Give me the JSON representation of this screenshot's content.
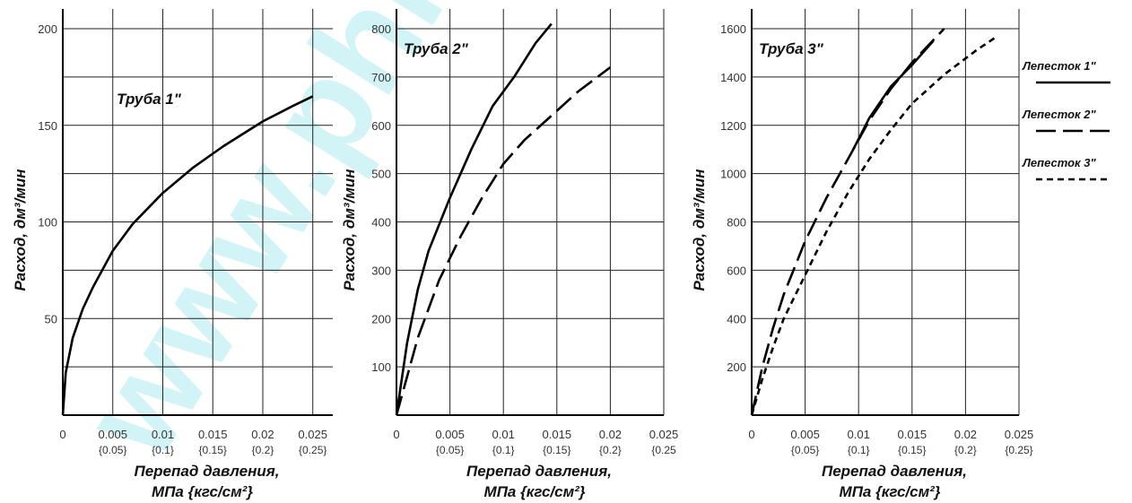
{
  "watermark": "www.phlo",
  "chart_data": [
    {
      "type": "line",
      "title": "Труба 1\"",
      "ylabel": "Расход, дм³/мин",
      "xlabel_line1": "Перепад давления,",
      "xlabel_line2": "МПа {кгс/см²}",
      "xlim": [
        0,
        0.027
      ],
      "ylim": [
        0,
        200
      ],
      "x_ticks": [
        "0",
        "0.005",
        "0.01",
        "0.015",
        "0.02",
        "0.025"
      ],
      "x_ticks_secondary": [
        "{0.05}",
        "{0.1}",
        "{0.15}",
        "{0.2}",
        "{0.25}"
      ],
      "y_ticks": [
        "50",
        "100",
        "150",
        "200"
      ],
      "grid": true,
      "series": [
        {
          "style": "solid",
          "x": [
            0,
            0.0003,
            0.001,
            0.002,
            0.003,
            0.005,
            0.007,
            0.01,
            0.013,
            0.016,
            0.02,
            0.023,
            0.025
          ],
          "y": [
            0,
            22,
            40,
            55,
            66,
            85,
            99,
            115,
            128,
            139,
            152,
            160,
            165
          ]
        }
      ]
    },
    {
      "type": "line",
      "title": "Труба 2\"",
      "ylabel": "Расход, дм³/мин",
      "xlabel_line1": "Перепад давления,",
      "xlabel_line2": "МПа {кгс/см²}",
      "xlim": [
        0,
        0.025
      ],
      "ylim": [
        0,
        800
      ],
      "x_ticks": [
        "0",
        "0.005",
        "0.01",
        "0.015",
        "0.02",
        "0.025"
      ],
      "x_ticks_secondary": [
        "{0.05}",
        "{0.1}",
        "{0.15}",
        "{0.2}",
        "{0.25"
      ],
      "y_ticks": [
        "100",
        "200",
        "300",
        "400",
        "500",
        "600",
        "700",
        "800"
      ],
      "grid": true,
      "series": [
        {
          "style": "solid",
          "x": [
            0,
            0.001,
            0.002,
            0.003,
            0.005,
            0.007,
            0.009,
            0.011,
            0.013,
            0.0145
          ],
          "y": [
            0,
            150,
            260,
            340,
            450,
            550,
            640,
            700,
            770,
            810
          ]
        },
        {
          "style": "dashed",
          "x": [
            0,
            0.002,
            0.004,
            0.006,
            0.008,
            0.01,
            0.012,
            0.014,
            0.017,
            0.02
          ],
          "y": [
            0,
            160,
            280,
            370,
            450,
            520,
            570,
            610,
            670,
            720
          ]
        }
      ]
    },
    {
      "type": "line",
      "title": "Труба 3\"",
      "ylabel": "Расход, дм³/мин",
      "xlabel_line1": "Перепад давления,",
      "xlabel_line2": "МПа {кгс/см²}",
      "xlim": [
        0,
        0.025
      ],
      "ylim": [
        0,
        1600
      ],
      "x_ticks": [
        "0",
        "0.005",
        "0.01",
        "0.015",
        "0.02",
        "0.025"
      ],
      "x_ticks_secondary": [
        "{0.05}",
        "{0.1}",
        "{0.15}",
        "{0.2}",
        "{0.25}"
      ],
      "y_ticks": [
        "200",
        "400",
        "600",
        "800",
        "1000",
        "1200",
        "1400",
        "1600"
      ],
      "grid": true,
      "series": [
        {
          "style": "solid",
          "x": [
            0.0095,
            0.011,
            0.013,
            0.015,
            0.017
          ],
          "y": [
            1100,
            1230,
            1360,
            1450,
            1550
          ]
        },
        {
          "style": "dashed",
          "x": [
            0,
            0.001,
            0.002,
            0.003,
            0.005,
            0.007,
            0.009,
            0.011,
            0.013,
            0.015,
            0.018
          ],
          "y": [
            0,
            200,
            360,
            500,
            720,
            900,
            1060,
            1220,
            1350,
            1460,
            1600
          ]
        },
        {
          "style": "dotted",
          "x": [
            0,
            0.001,
            0.002,
            0.003,
            0.005,
            0.007,
            0.009,
            0.011,
            0.013,
            0.015,
            0.018,
            0.021,
            0.023
          ],
          "y": [
            0,
            150,
            280,
            400,
            580,
            760,
            920,
            1060,
            1180,
            1290,
            1410,
            1510,
            1570
          ]
        }
      ]
    }
  ],
  "legend": {
    "placement": "right",
    "items": [
      {
        "label": "Лепесток 1\"",
        "style": "solid"
      },
      {
        "label": "Лепесток 2\"",
        "style": "dashed"
      },
      {
        "label": "Лепесток 3\"",
        "style": "dotted"
      }
    ]
  }
}
